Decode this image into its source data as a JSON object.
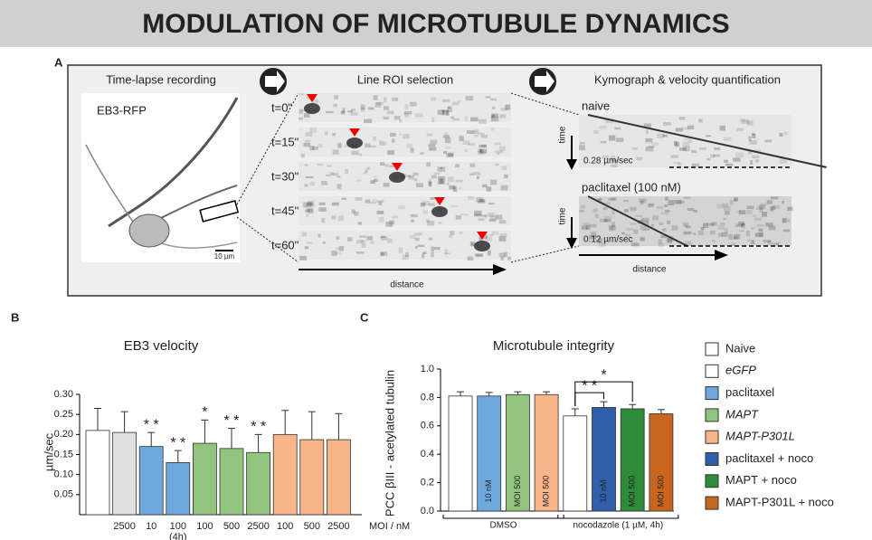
{
  "header": {
    "title": "MODULATION OF MICROTUBULE DYNAMICS"
  },
  "panel_a": {
    "label": "A",
    "step_titles": [
      "Time-lapse recording",
      "Line ROI selection",
      "Kymograph & velocity quantification"
    ],
    "image_label": "EB3-RFP",
    "scale_bar": "10 µm",
    "timepoints": [
      "t=0\"",
      "t=15\"",
      "t=30\"",
      "t=45\"",
      "t=60\""
    ],
    "roi_axis": "distance",
    "kymographs": [
      {
        "label": "naive",
        "velocity": "0.28 µm/sec",
        "axis": "time"
      },
      {
        "label": "paclitaxel (100 nM)",
        "velocity": "0.12 µm/sec",
        "axis": "time"
      }
    ],
    "kymo_axis": "distance"
  },
  "panel_labels": [
    "B",
    "C"
  ],
  "chart_data": [
    {
      "type": "bar",
      "title": "EB3 velocity",
      "y_label": "µm/sec",
      "x_label": "MOI / nM",
      "categories": [
        null,
        "2500",
        "10",
        "100",
        "100",
        "500",
        "2500",
        "100",
        "500",
        "2500"
      ],
      "category_notes": [
        {
          "text": "(4h)",
          "bar": 3
        }
      ],
      "values": [
        0.21,
        0.205,
        0.17,
        0.13,
        0.178,
        0.165,
        0.155,
        0.2,
        0.187,
        0.187
      ],
      "errors": [
        0.055,
        0.052,
        0.035,
        0.03,
        0.058,
        0.05,
        0.045,
        0.06,
        0.07,
        0.065
      ],
      "colors": [
        "#ffffff",
        "#e0e0e0",
        "#6fa8dc",
        "#6fa8dc",
        "#93c47d",
        "#93c47d",
        "#93c47d",
        "#f9b58a",
        "#f9b58a",
        "#f9b58a"
      ],
      "annotations": [
        {
          "text": "* *",
          "bar": 2
        },
        {
          "text": "* *",
          "bar": 3
        },
        {
          "text": "*",
          "bar": 4
        },
        {
          "text": "* *",
          "bar": 5
        },
        {
          "text": "* *",
          "bar": 6
        }
      ],
      "ylim": [
        0,
        0.3
      ],
      "yticks": [
        0.05,
        {
          "value": 0.1,
          "label": "0.10"
        },
        0.15,
        {
          "value": 0.2,
          "label": "0.20"
        },
        0.25,
        {
          "value": 0.3,
          "label": "0.30"
        }
      ],
      "grid": false
    },
    {
      "type": "bar",
      "title": "Microtubule integrity",
      "y_label": "PCC βIII - acetylated tubulin",
      "values": [
        0.81,
        0.81,
        0.82,
        0.82,
        0.67,
        0.73,
        0.72,
        0.685
      ],
      "errors": [
        0.03,
        0.025,
        0.02,
        0.02,
        0.05,
        0.04,
        0.03,
        0.03
      ],
      "colors": [
        "#ffffff",
        "#6fa8dc",
        "#93c47d",
        "#f9b58a",
        "#ffffff",
        "#2f5fa8",
        "#2e8b3a",
        "#c8651e"
      ],
      "bar_labels": [
        null,
        "10 nM",
        "MOI 500",
        "MOI 500",
        null,
        "10 nM",
        "MOI 500",
        "MOI 500"
      ],
      "groups": [
        {
          "label": "DMSO",
          "from": 0,
          "to": 3
        },
        {
          "label": "nocodazole (1 µM, 4h)",
          "from": 4,
          "to": 7
        }
      ],
      "annotations": [
        {
          "text": "* *",
          "from": 4,
          "to": 5
        },
        {
          "text": "*",
          "from": 4,
          "to": 6
        }
      ],
      "ylim": [
        0,
        1
      ],
      "yticks": [
        {
          "value": 0,
          "label": "0.0"
        },
        0.2,
        0.4,
        0.6,
        0.8,
        {
          "value": 1,
          "label": "1.0"
        }
      ],
      "grid": false
    }
  ],
  "legend": [
    {
      "label": "Naive",
      "color": "#ffffff",
      "italic": false
    },
    {
      "label": "eGFP",
      "color": "#ffffff",
      "italic": true
    },
    {
      "label": "paclitaxel",
      "color": "#6fa8dc",
      "italic": false
    },
    {
      "label": "MAPT",
      "color": "#93c47d",
      "italic": true
    },
    {
      "label": "MAPT-P301L",
      "color": "#f9b58a",
      "italic": true
    },
    {
      "label": "paclitaxel + noco",
      "color": "#2f5fa8",
      "italic": false
    },
    {
      "label": "MAPT + noco",
      "color": "#2e8b3a",
      "italic": false
    },
    {
      "label": "MAPT-P301L + noco",
      "color": "#c8651e",
      "italic": false
    }
  ]
}
